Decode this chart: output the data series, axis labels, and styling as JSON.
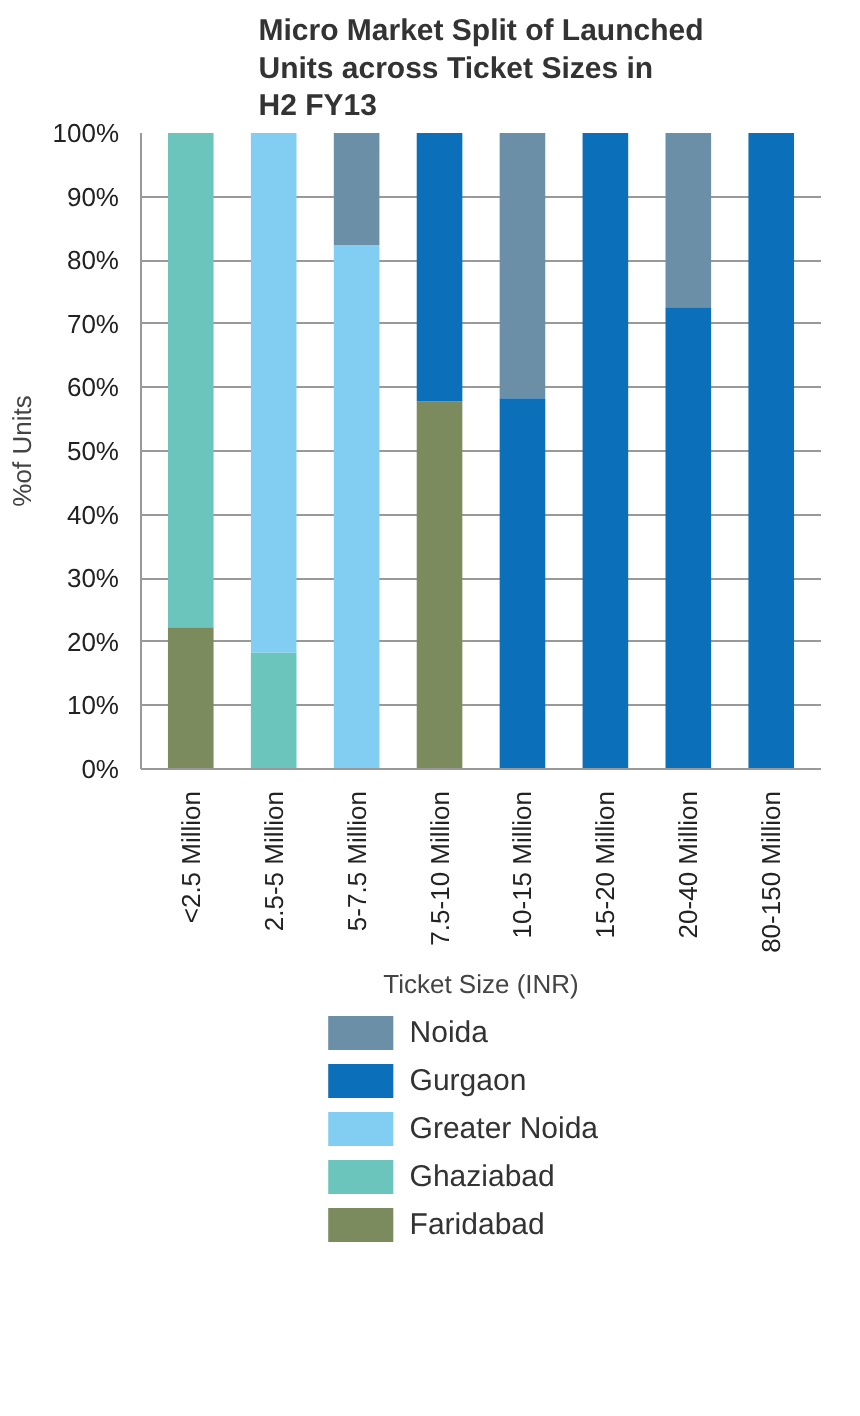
{
  "chart_data": {
    "type": "bar",
    "title": "Micro Market Split of Launched Units across Ticket Sizes in H2 FY13",
    "xlabel": "Ticket Size (INR)",
    "ylabel": "%of Units",
    "categories": [
      "<2.5 Million",
      "2.5-5 Million",
      "5-7.5 Million",
      "7.5-10 Million",
      "10-15 Million",
      "15-20 Million",
      "20-40 Million",
      "80-150 Million"
    ],
    "stacked": true,
    "ylim": [
      0,
      100
    ],
    "yticks": [
      {
        "value": 0,
        "label": "0%"
      },
      {
        "value": 10,
        "label": "10%"
      },
      {
        "value": 20,
        "label": "20%"
      },
      {
        "value": 30,
        "label": "30%"
      },
      {
        "value": 40,
        "label": "40%"
      },
      {
        "value": 50,
        "label": "50%"
      },
      {
        "value": 60,
        "label": "60%"
      },
      {
        "value": 70,
        "label": "70%"
      },
      {
        "value": 80,
        "label": "80%"
      },
      {
        "value": 90,
        "label": "90%"
      },
      {
        "value": 100,
        "label": "100%"
      }
    ],
    "grid": "y",
    "legend": "bottom",
    "series": [
      {
        "name": "Faridabad",
        "color": "#7b8b5e",
        "values": [
          22.3,
          null,
          null,
          57.8,
          null,
          null,
          null,
          null
        ]
      },
      {
        "name": "Ghaziabad",
        "color": "#6bc5bc",
        "values": [
          77.7,
          18.3,
          null,
          null,
          null,
          null,
          null,
          null
        ]
      },
      {
        "name": "Greater Noida",
        "color": "#82cdf2",
        "values": [
          null,
          81.7,
          82.4,
          null,
          null,
          null,
          null,
          null
        ]
      },
      {
        "name": "Gurgaon",
        "color": "#0c6fba",
        "values": [
          null,
          null,
          null,
          42.2,
          58.3,
          100,
          72.6,
          100
        ]
      },
      {
        "name": "Noida",
        "color": "#6a8fa6",
        "values": [
          null,
          null,
          17.6,
          null,
          41.7,
          null,
          27.4,
          null
        ]
      }
    ]
  }
}
